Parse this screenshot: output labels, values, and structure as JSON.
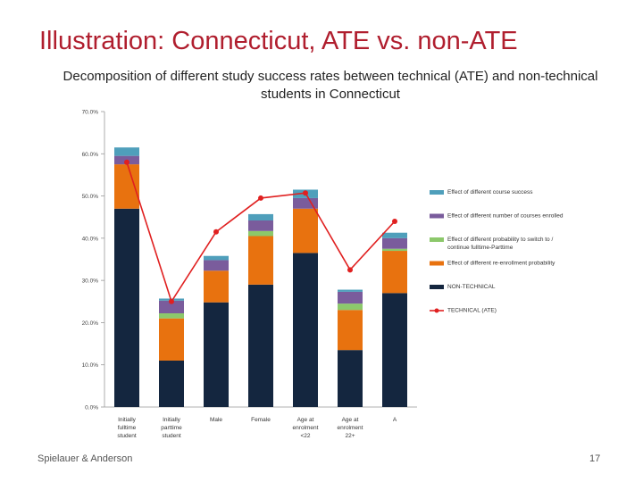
{
  "slide": {
    "title": "Illustration: Connecticut, ATE vs. non-ATE",
    "footer_left": "Spielauer & Anderson",
    "page_number": "17"
  },
  "colors": {
    "non_technical": "#14263f",
    "enrollment": "#e8720f",
    "switch": "#8cc86b",
    "courses": "#7a5c9c",
    "course_success": "#4f9fbb",
    "technical": "#e02020",
    "axis": "#999999"
  },
  "chart_data": {
    "type": "bar",
    "title": "Decomposition of different study success rates between technical (ATE) and non-technical students in Connecticut",
    "xlabel": "",
    "ylabel": "",
    "ylim": [
      0,
      70
    ],
    "yticks": [
      "0.0%",
      "10.0%",
      "20.0%",
      "30.0%",
      "40.0%",
      "50.0%",
      "60.0%",
      "70.0%"
    ],
    "categories": [
      "Initially fulltime student",
      "Initially parttime student",
      "Male",
      "Female",
      "Age at enrolment <22",
      "Age at enrolment 22+",
      "A"
    ],
    "legend_position": "right",
    "grid": false,
    "series": [
      {
        "key": "non_technical",
        "name": "NON-TECHNICAL",
        "values": [
          47.0,
          11.0,
          24.8,
          29.0,
          36.5,
          13.5,
          27.0
        ]
      },
      {
        "key": "enrollment",
        "name": "Effect of different re-enrollment probability",
        "values": [
          10.5,
          10.0,
          7.5,
          11.5,
          10.5,
          9.5,
          10.0
        ]
      },
      {
        "key": "switch",
        "name": "Effect of different probability to switch to / continue fulltime-Parttime",
        "values": [
          0.0,
          1.2,
          0.0,
          1.2,
          0.0,
          1.5,
          0.5
        ]
      },
      {
        "key": "courses",
        "name": "Effect of different number of courses enrolled",
        "values": [
          2.0,
          3.0,
          2.5,
          2.5,
          2.5,
          2.8,
          2.5
        ]
      },
      {
        "key": "course_success",
        "name": "Effect of different course success",
        "values": [
          2.0,
          0.5,
          1.0,
          1.5,
          2.0,
          0.5,
          1.3
        ]
      }
    ],
    "line": {
      "key": "technical",
      "name": "TECHNICAL (ATE)",
      "values": [
        58.0,
        25.0,
        41.5,
        49.5,
        50.7,
        32.5,
        44.0
      ]
    },
    "legend_order": [
      "course_success",
      "courses",
      "switch",
      "enrollment",
      "non_technical",
      "technical"
    ]
  }
}
